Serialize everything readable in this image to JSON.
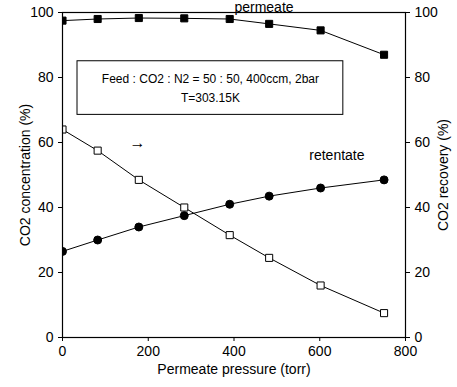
{
  "chart_data": {
    "type": "line",
    "x_label": "Permeate pressure (torr)",
    "y_label": "CO2 concentration (%)",
    "y2_label": "CO2 recovery (%)",
    "x": [
      0,
      82,
      178,
      284,
      390,
      482,
      602,
      750
    ],
    "series": [
      {
        "name": "permeate",
        "color": "#000000",
        "marker": "square",
        "axis": "y",
        "values": [
          97.5,
          98,
          98.3,
          98.2,
          98,
          96.5,
          94.5,
          87
        ]
      },
      {
        "name": "retentate",
        "color": "#000000",
        "marker": "circle",
        "axis": "y",
        "values": [
          26.5,
          30,
          34,
          37.5,
          41,
          43.5,
          46,
          48.5
        ]
      },
      {
        "color": "#000000",
        "marker": "open_square",
        "axis": "y2",
        "values": [
          64,
          57.5,
          48.5,
          40,
          31.5,
          24.5,
          16,
          7.5
        ]
      }
    ],
    "annotations": [
      {
        "text": "Feed : CO2 : N2 = 50 : 50, 400ccm, 2bar"
      },
      {
        "text": "T=303.15K"
      },
      {
        "text": "→"
      }
    ],
    "xlim": [
      0,
      800
    ],
    "xticks": [
      0,
      200,
      400,
      600,
      800
    ],
    "ylim": [
      0,
      100
    ],
    "yticks": [
      0,
      20,
      40,
      60,
      80,
      100
    ],
    "y2lim": [
      0,
      100
    ],
    "y2ticks": [
      0,
      20,
      40,
      60,
      80,
      100
    ],
    "grid": false
  }
}
